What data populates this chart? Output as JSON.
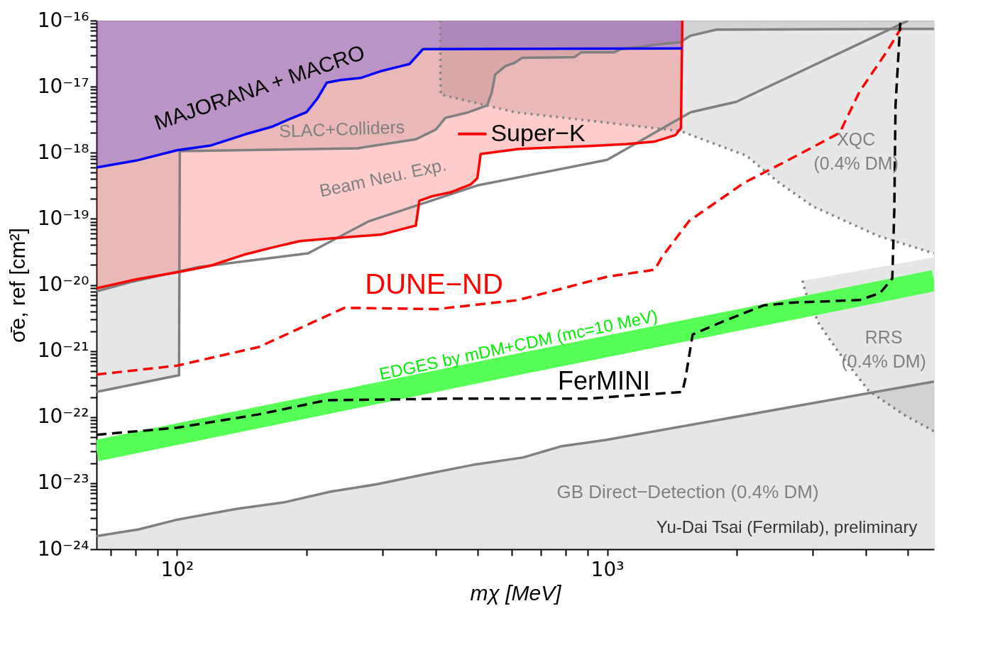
{
  "chart_data": {
    "type": "line",
    "xlabel": "mχ [MeV]",
    "ylabel": "σ̄e, ref [cm²]",
    "log": "xy",
    "grid": false,
    "legend": "top",
    "xlim": [
      65,
      5750
    ],
    "ylim": [
      1e-24,
      1e-16
    ],
    "xticks": [
      {
        "value": 70,
        "label": null
      },
      {
        "value": 80,
        "label": null
      },
      {
        "value": 90,
        "label": null
      },
      {
        "value": 100,
        "label": "10²"
      },
      {
        "value": 200,
        "label": null
      },
      {
        "value": 300,
        "label": null
      },
      {
        "value": 400,
        "label": null
      },
      {
        "value": 500,
        "label": null
      },
      {
        "value": 600,
        "label": null
      },
      {
        "value": 700,
        "label": null
      },
      {
        "value": 800,
        "label": null
      },
      {
        "value": 900,
        "label": null
      },
      {
        "value": 1000,
        "label": "10³"
      },
      {
        "value": 2000,
        "label": null
      },
      {
        "value": 3000,
        "label": null
      },
      {
        "value": 4000,
        "label": null
      },
      {
        "value": 5000,
        "label": null
      }
    ],
    "yticks": [
      {
        "value": 1e-24,
        "label": "10⁻²⁴"
      },
      {
        "value": 2e-24,
        "label": null
      },
      {
        "value": 3e-24,
        "label": null
      },
      {
        "value": 4e-24,
        "label": null
      },
      {
        "value": 5e-24,
        "label": null
      },
      {
        "value": 6e-24,
        "label": null
      },
      {
        "value": 7e-24,
        "label": null
      },
      {
        "value": 8e-24,
        "label": null
      },
      {
        "value": 9e-24,
        "label": null
      },
      {
        "value": 1e-23,
        "label": "10⁻²³"
      },
      {
        "value": 2e-23,
        "label": null
      },
      {
        "value": 3e-23,
        "label": null
      },
      {
        "value": 4e-23,
        "label": null
      },
      {
        "value": 5e-23,
        "label": null
      },
      {
        "value": 6e-23,
        "label": null
      },
      {
        "value": 7e-23,
        "label": null
      },
      {
        "value": 8e-23,
        "label": null
      },
      {
        "value": 9e-23,
        "label": null
      },
      {
        "value": 1e-22,
        "label": "10⁻²²"
      },
      {
        "value": 2e-22,
        "label": null
      },
      {
        "value": 3e-22,
        "label": null
      },
      {
        "value": 4e-22,
        "label": null
      },
      {
        "value": 5e-22,
        "label": null
      },
      {
        "value": 6e-22,
        "label": null
      },
      {
        "value": 7e-22,
        "label": null
      },
      {
        "value": 8e-22,
        "label": null
      },
      {
        "value": 9e-22,
        "label": null
      },
      {
        "value": 1e-21,
        "label": "10⁻²¹"
      },
      {
        "value": 2e-21,
        "label": null
      },
      {
        "value": 3e-21,
        "label": null
      },
      {
        "value": 4e-21,
        "label": null
      },
      {
        "value": 5e-21,
        "label": null
      },
      {
        "value": 6e-21,
        "label": null
      },
      {
        "value": 7e-21,
        "label": null
      },
      {
        "value": 8e-21,
        "label": null
      },
      {
        "value": 9e-21,
        "label": null
      },
      {
        "value": 1e-20,
        "label": "10⁻²⁰"
      },
      {
        "value": 2e-20,
        "label": null
      },
      {
        "value": 3e-20,
        "label": null
      },
      {
        "value": 4e-20,
        "label": null
      },
      {
        "value": 5e-20,
        "label": null
      },
      {
        "value": 6e-20,
        "label": null
      },
      {
        "value": 7e-20,
        "label": null
      },
      {
        "value": 8e-20,
        "label": null
      },
      {
        "value": 9e-20,
        "label": null
      },
      {
        "value": 1e-19,
        "label": "10⁻¹⁹"
      },
      {
        "value": 2e-19,
        "label": null
      },
      {
        "value": 3e-19,
        "label": null
      },
      {
        "value": 4e-19,
        "label": null
      },
      {
        "value": 5e-19,
        "label": null
      },
      {
        "value": 6e-19,
        "label": null
      },
      {
        "value": 7e-19,
        "label": null
      },
      {
        "value": 8e-19,
        "label": null
      },
      {
        "value": 9e-19,
        "label": null
      },
      {
        "value": 1e-18,
        "label": "10⁻¹⁸"
      },
      {
        "value": 2e-18,
        "label": null
      },
      {
        "value": 3e-18,
        "label": null
      },
      {
        "value": 4e-18,
        "label": null
      },
      {
        "value": 5e-18,
        "label": null
      },
      {
        "value": 6e-18,
        "label": null
      },
      {
        "value": 7e-18,
        "label": null
      },
      {
        "value": 8e-18,
        "label": null
      },
      {
        "value": 9e-18,
        "label": null
      },
      {
        "value": 1e-17,
        "label": "10⁻¹⁷"
      },
      {
        "value": 2e-17,
        "label": null
      },
      {
        "value": 3e-17,
        "label": null
      },
      {
        "value": 4e-17,
        "label": null
      },
      {
        "value": 5e-17,
        "label": null
      },
      {
        "value": 6e-17,
        "label": null
      },
      {
        "value": 7e-17,
        "label": null
      },
      {
        "value": 8e-17,
        "label": null
      },
      {
        "value": 9e-17,
        "label": null
      },
      {
        "value": 1e-16,
        "label": "10⁻¹⁶"
      }
    ],
    "series": [
      {
        "color": "#808080",
        "line_style": "solid",
        "x": [
          65,
          81.5,
          100,
          138,
          176.8,
          226.8,
          290.8,
          373,
          485,
          638,
          779.8,
          992.7,
          5750
        ],
        "values": [
          1.58e-24,
          2e-24,
          2.8e-24,
          4.1e-24,
          5.1e-24,
          7.4e-24,
          9.6e-24,
          1.34e-23,
          1.88e-23,
          2.45e-23,
          3.6e-23,
          4.5e-23,
          3.45e-22
        ],
        "lower": [
          1e-24,
          1e-24,
          1e-24,
          1e-24,
          1e-24,
          1e-24,
          1e-24,
          1e-24,
          1e-24,
          1e-24,
          1e-24,
          1e-24,
          1e-24
        ],
        "upper": [
          1.58e-24,
          2e-24,
          2.8e-24,
          4.1e-24,
          5.1e-24,
          7.4e-24,
          9.6e-24,
          1.34e-23,
          1.88e-23,
          2.45e-23,
          3.6e-23,
          4.5e-23,
          3.45e-22
        ]
      },
      {
        "color": "#808080",
        "line_style": "solid",
        "x": [
          65,
          101.1,
          101.5,
          263.4,
          359.4,
          399.5,
          420.6,
          476.2,
          525.6,
          539.2,
          549,
          580,
          610.7,
          633.3,
          838.8,
          870,
          1037.3,
          1075.8,
          1329.8,
          1478.7,
          1562,
          1794.6,
          5750
        ],
        "values": [
          2.4e-22,
          4.3e-22,
          1.06e-18,
          1.17e-18,
          1.6e-18,
          2.24e-18,
          3.37e-18,
          4.1e-18,
          5.2e-18,
          8.2e-18,
          1.53e-17,
          2.05e-17,
          2.31e-17,
          2.73e-17,
          2.8e-17,
          3.3e-17,
          3.3e-17,
          3.7e-17,
          4.4e-17,
          4.7e-17,
          5.9e-17,
          7.3e-17,
          7.5e-17
        ],
        "lower": [
          2.4e-22,
          4.3e-22,
          1.06e-18,
          1.17e-18,
          1.6e-18,
          2.24e-18,
          3.37e-18,
          4.1e-18,
          5.2e-18,
          8.2e-18,
          1.53e-17,
          2.05e-17,
          2.31e-17,
          2.73e-17,
          2.8e-17,
          3.3e-17,
          3.3e-17,
          3.7e-17,
          4.4e-17,
          4.7e-17,
          5.9e-17,
          7.3e-17,
          7.5e-17
        ],
        "upper": [
          1e-16,
          1e-16,
          1e-16,
          1e-16,
          1e-16,
          1e-16,
          1e-16,
          1e-16,
          1e-16,
          1e-16,
          1e-16,
          1e-16,
          1e-16,
          1e-16,
          1e-16,
          1e-16,
          1e-16,
          1e-16,
          1e-16,
          1e-16,
          1e-16,
          1e-16,
          1e-16
        ]
      },
      {
        "color": "#868686",
        "line_style": "dotted",
        "x": [
          409,
          410,
          610.7,
          1478.7,
          2108,
          2512,
          3004,
          4268,
          5750
        ],
        "values": [
          1e-16,
          7.6e-18,
          4.1e-18,
          2.13e-18,
          9e-19,
          3.5e-19,
          1.55e-19,
          5.5e-20,
          3e-20
        ],
        "lower": [
          1e-16,
          7.6e-18,
          4.1e-18,
          2.13e-18,
          9e-19,
          3.5e-19,
          1.55e-19,
          5.5e-20,
          3e-20
        ],
        "upper": [
          1e-16,
          1e-16,
          1e-16,
          1e-16,
          1e-16,
          1e-16,
          1e-16,
          1e-16,
          1e-16
        ]
      },
      {
        "color": "#808080",
        "line_style": "dotted",
        "x": [
          2844,
          2886,
          3105,
          3427,
          4055,
          4886,
          5750
        ],
        "values": [
          1.16e-20,
          8e-21,
          2.6e-21,
          1.02e-21,
          2.5e-22,
          1.09e-22,
          6.1e-23
        ],
        "lower": [
          1.16e-20,
          8e-21,
          2.6e-21,
          1.02e-21,
          2.5e-22,
          1.09e-22,
          6.1e-23
        ],
        "upper": [
          1.16e-20,
          1.18e-20,
          1.27e-20,
          1.43e-20,
          1.74e-20,
          2.16e-20,
          2.6e-20
        ]
      },
      {
        "color": "#808080",
        "line_style": "solid",
        "x": [
          65,
          78,
          112.4,
          201.7,
          278.3,
          499,
          1000,
          1562,
          1995,
          5012
        ],
        "values": [
          8e-21,
          1.1e-20,
          1.87e-20,
          3e-20,
          9.1e-20,
          3.2e-19,
          7.8e-19,
          4.1e-18,
          5.9e-18,
          1e-16
        ]
      },
      {
        "name": "Super−K",
        "color": "#ff0000",
        "line_style": "solid",
        "x": [
          65,
          80.3,
          100,
          120,
          144,
          167,
          193,
          223,
          299,
          359,
          366,
          392,
          431,
          481,
          499,
          508,
          621,
          896,
          1112,
          1291,
          1441,
          1484,
          1495
        ],
        "values": [
          8.9e-21,
          1.21e-20,
          1.55e-20,
          1.96e-20,
          2.9e-20,
          3.7e-20,
          4.6e-20,
          5e-20,
          5.8e-20,
          7.9e-20,
          1.88e-19,
          2.2e-19,
          2.5e-19,
          3.3e-19,
          4.1e-19,
          9.6e-19,
          1.14e-18,
          1.26e-18,
          1.35e-18,
          1.48e-18,
          1.85e-18,
          2.35e-18,
          1e-16
        ],
        "lower": [
          8.9e-21,
          1.21e-20,
          1.55e-20,
          1.96e-20,
          2.9e-20,
          3.7e-20,
          4.6e-20,
          5e-20,
          5.8e-20,
          7.9e-20,
          1.88e-19,
          2.2e-19,
          2.5e-19,
          3.3e-19,
          4.1e-19,
          9.6e-19,
          1.14e-18,
          1.26e-18,
          1.35e-18,
          1.48e-18,
          1.85e-18,
          2.35e-18,
          1e-16
        ],
        "upper": [
          1e-16,
          1e-16,
          1e-16,
          1e-16,
          1e-16,
          1e-16,
          1e-16,
          1e-16,
          1e-16,
          1e-16,
          1e-16,
          1e-16,
          1e-16,
          1e-16,
          1e-16,
          1e-16,
          1e-16,
          1e-16,
          1e-16,
          1e-16,
          1e-16,
          1e-16,
          1e-16
        ]
      },
      {
        "color": "#0000ff",
        "line_style": "solid",
        "x": [
          65,
          80.3,
          100,
          120,
          144,
          167,
          180,
          200,
          212,
          223,
          240,
          268,
          299,
          322,
          347,
          373,
          1495
        ],
        "values": [
          6e-19,
          7.6e-19,
          1.09e-18,
          1.29e-18,
          1.9e-18,
          2.5e-18,
          3.1e-18,
          4.1e-18,
          6.6e-18,
          1.15e-17,
          1.26e-17,
          1.36e-17,
          1.73e-17,
          1.95e-17,
          2.2e-17,
          3.7e-17,
          3.8e-17
        ],
        "lower": [
          6e-19,
          7.6e-19,
          1.09e-18,
          1.29e-18,
          1.9e-18,
          2.5e-18,
          3.1e-18,
          4.1e-18,
          6.6e-18,
          1.15e-17,
          1.26e-17,
          1.36e-17,
          1.73e-17,
          1.95e-17,
          2.2e-17,
          3.7e-17,
          3.8e-17
        ],
        "upper": [
          1e-16,
          1e-16,
          1e-16,
          1e-16,
          1e-16,
          1e-16,
          1e-16,
          1e-16,
          1e-16,
          1e-16,
          1e-16,
          1e-16,
          1e-16,
          1e-16,
          1e-16,
          1e-16,
          1e-16
        ]
      },
      {
        "color": "#55ff55",
        "line_style": "solid",
        "x": [
          65,
          621,
          5750
        ],
        "values": [
          3.1e-23,
          6.3e-22,
          1.16e-20
        ]
      },
      {
        "color": "#ff0000",
        "line_style": "dashed",
        "x": [
          65,
          100,
          155,
          245,
          401,
          621,
          1000,
          1291,
          1338,
          1551,
          1795,
          2080,
          2690,
          3470,
          3860,
          4480,
          4820
        ],
        "values": [
          4.4e-22,
          6e-22,
          1.15e-21,
          4.5e-21,
          4.3e-21,
          5.9e-21,
          1.33e-20,
          1.7e-20,
          2.6e-20,
          9.3e-20,
          1.8e-19,
          3.5e-19,
          8.3e-19,
          2e-18,
          8.4e-18,
          3.5e-17,
          7.7e-17
        ]
      },
      {
        "color": "#000000",
        "line_style": "dashed",
        "x": [
          65,
          100,
          155,
          223,
          431,
          896,
          1495,
          1521,
          1580,
          1860,
          2310,
          2690,
          3860,
          4305,
          4600,
          4650,
          4680,
          4800
        ],
        "values": [
          5.4e-23,
          6.9e-23,
          1.1e-22,
          1.8e-22,
          1.9e-22,
          1.9e-22,
          2.4e-22,
          3.9e-22,
          1.78e-21,
          2.8e-21,
          4.9e-21,
          5.4e-21,
          5.9e-21,
          7.5e-21,
          1.25e-20,
          1.4e-19,
          5.2e-18,
          9.3e-17
        ]
      }
    ],
    "annotations": [
      "MAJORANA + MACRO",
      "SLAC+Colliders",
      "Beam Neu. Exp.",
      "DUNE−ND",
      "EDGES by mDM+CDM (mc=10 MeV)",
      "FerMINI",
      "XQC\n(0.4% DM)",
      "RRS\n(0.4% DM)",
      "GB Direct−Detection (0.4% DM)",
      "Yu-Dai Tsai (Fermilab), preliminary"
    ]
  }
}
